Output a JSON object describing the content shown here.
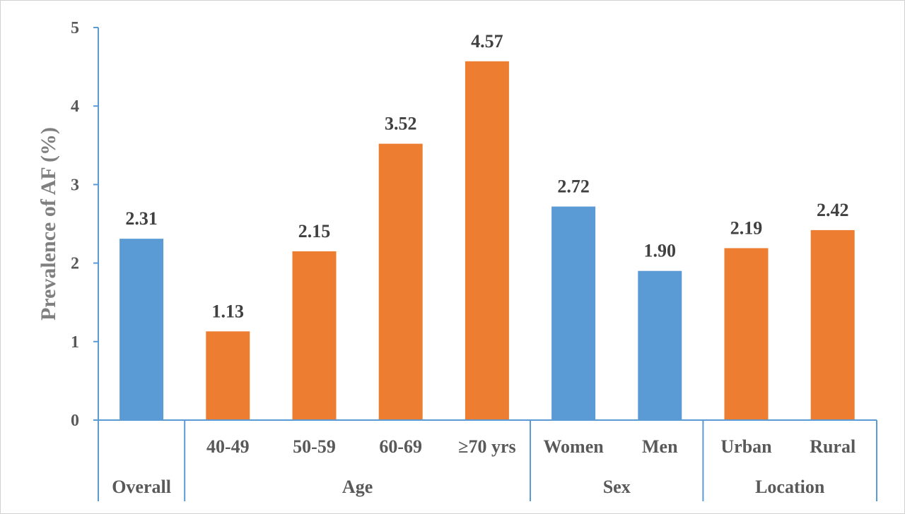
{
  "chart_data": {
    "type": "bar",
    "ylabel": "Prevalence of AF (%)",
    "ylim": [
      0,
      5
    ],
    "yticks": [
      "0",
      "1",
      "2",
      "3",
      "4",
      "5"
    ],
    "grid": false,
    "categories": [
      "",
      "40-49",
      "50-59",
      "60-69",
      "≥70 yrs",
      "Women",
      "Men",
      "Urban",
      "Rural"
    ],
    "values": [
      2.31,
      1.13,
      2.15,
      3.52,
      4.57,
      2.72,
      1.9,
      2.19,
      2.42
    ],
    "value_labels": [
      "2.31",
      "1.13",
      "2.15",
      "3.52",
      "4.57",
      "2.72",
      "1.90",
      "2.19",
      "2.42"
    ],
    "groups": [
      {
        "label": "Overall",
        "categories": [
          ""
        ]
      },
      {
        "label": "Age",
        "categories": [
          "40-49",
          "50-59",
          "60-69",
          "≥70 yrs"
        ]
      },
      {
        "label": "Sex",
        "categories": [
          "Women",
          "Men"
        ]
      },
      {
        "label": "Location",
        "categories": [
          "Urban",
          "Rural"
        ]
      }
    ],
    "colors": [
      "#5b9bd5",
      "#ed7d31",
      "#ed7d31",
      "#ed7d31",
      "#ed7d31",
      "#5b9bd5",
      "#5b9bd5",
      "#ed7d31",
      "#ed7d31"
    ],
    "axis_color": "#5b9bd5"
  }
}
